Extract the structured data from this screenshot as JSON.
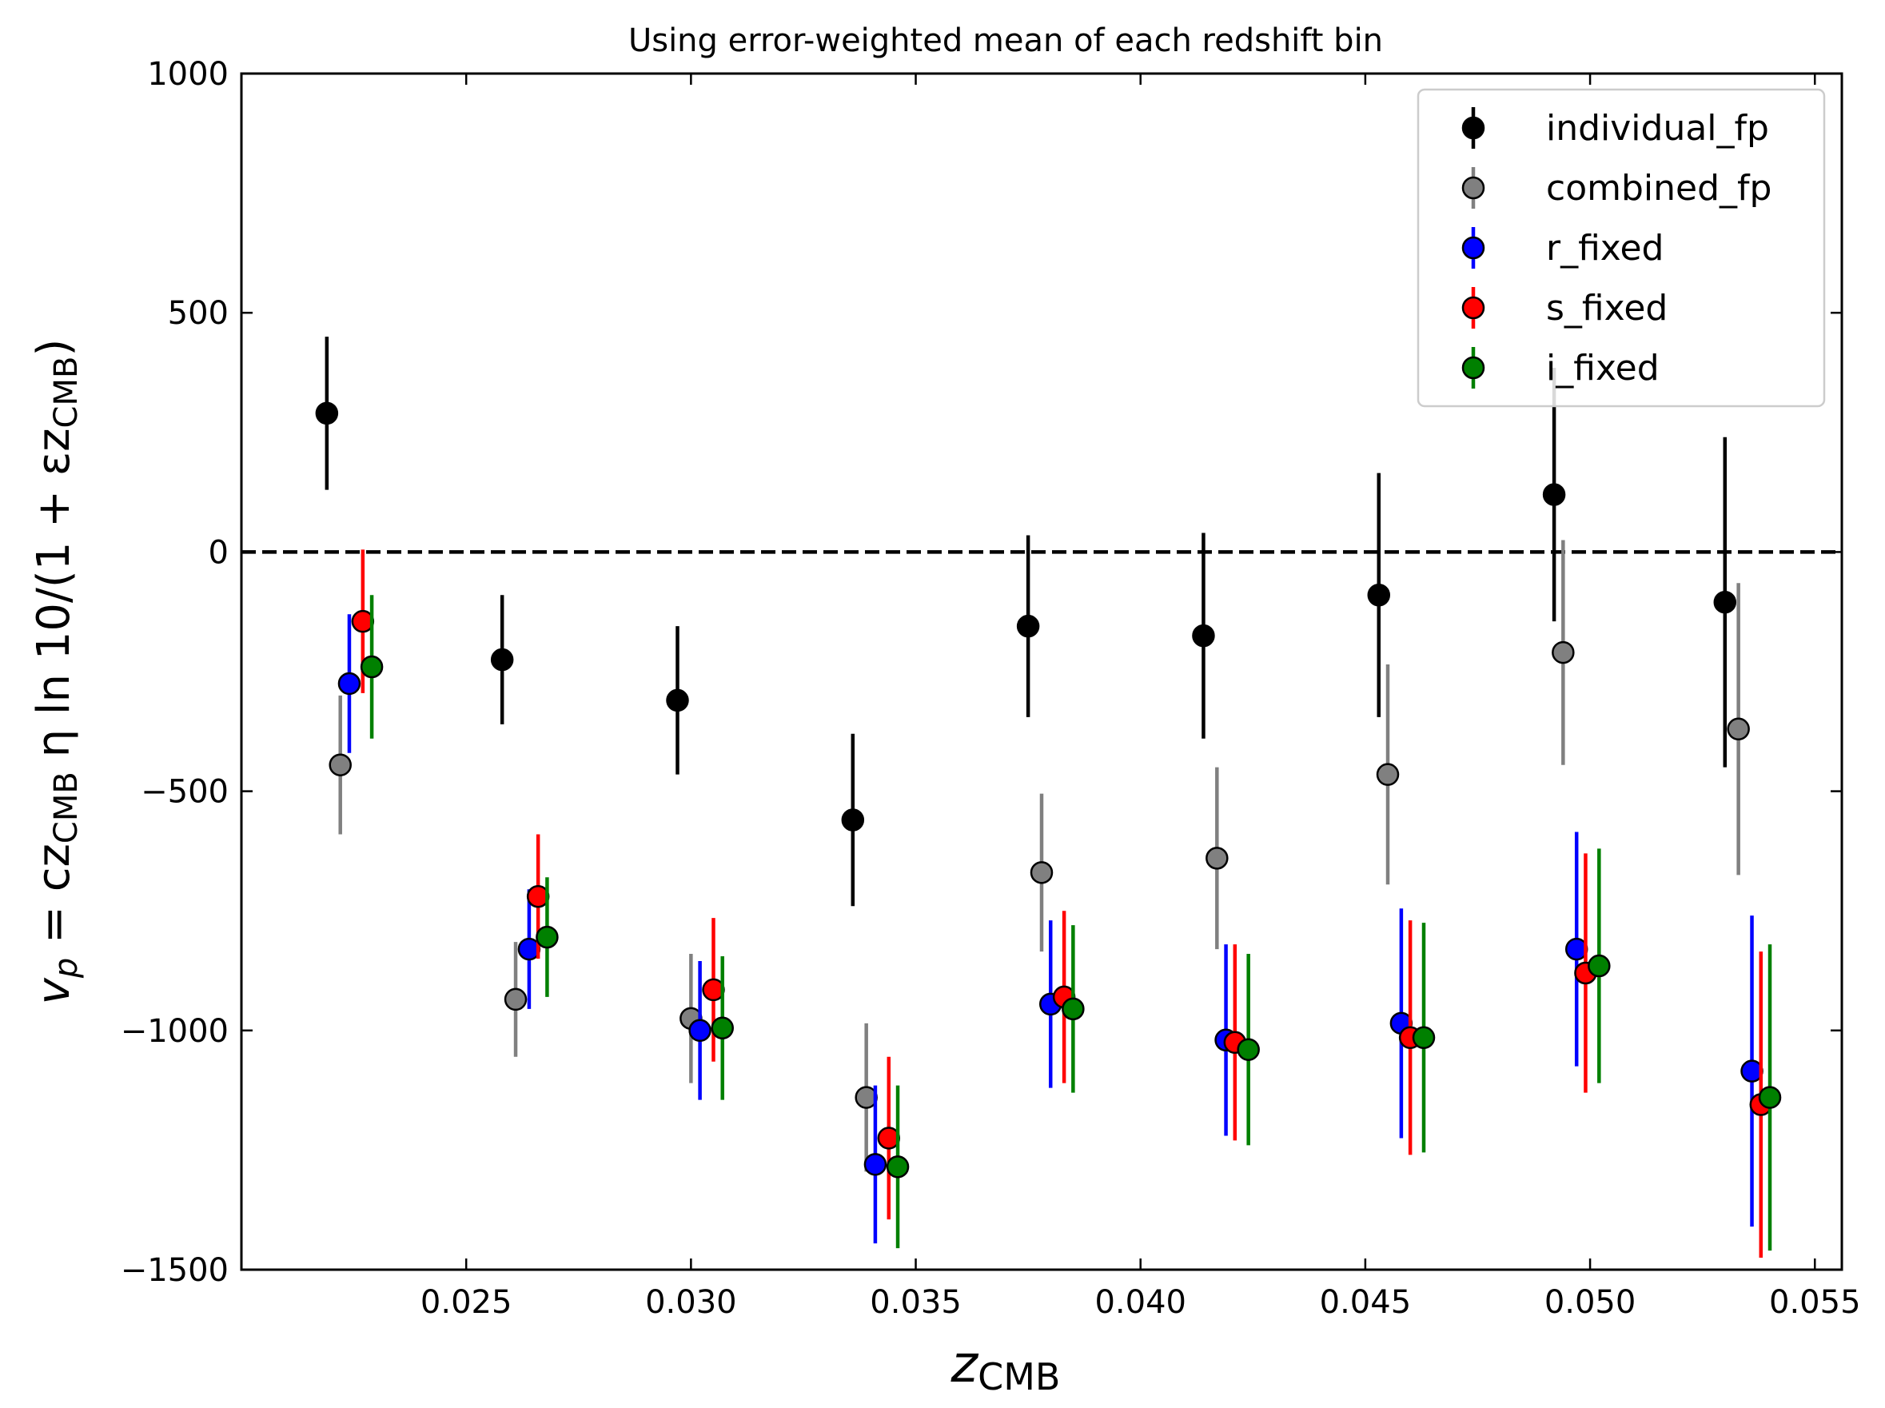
{
  "chart_data": {
    "type": "scatter",
    "title": "Using error-weighted mean of each redshift bin",
    "xlabel": {
      "main": "z",
      "sub": "CMB"
    },
    "ylabel": {
      "vp": "v",
      "vp_sub": "p",
      "eq": " = cz",
      "cmb1": "CMB",
      "mid": " η ln 10/(1 + εz",
      "cmb2": "CMB",
      "end": ")"
    },
    "xlim": [
      0.02,
      0.0556
    ],
    "ylim": [
      -1500,
      1000
    ],
    "xticks": [
      0.025,
      0.03,
      0.035,
      0.04,
      0.045,
      0.05,
      0.055
    ],
    "xtick_labels": [
      "0.025",
      "0.030",
      "0.035",
      "0.040",
      "0.045",
      "0.050",
      "0.055"
    ],
    "yticks": [
      -1500,
      -1000,
      -500,
      0,
      500,
      1000
    ],
    "ytick_labels": [
      "−1500",
      "−1000",
      "−500",
      "0",
      "500",
      "1000"
    ],
    "reference_line": {
      "y": 0,
      "style": "dashed",
      "color": "#000000"
    },
    "legend_position": "top-right",
    "series": [
      {
        "name": "individual_fp",
        "color": "#000000",
        "marker_color": "#000000",
        "x": [
          0.0219,
          0.0258,
          0.0297,
          0.0336,
          0.0375,
          0.0414,
          0.0453,
          0.0492,
          0.053
        ],
        "y": [
          290,
          -225,
          -310,
          -560,
          -155,
          -175,
          -90,
          120,
          -105
        ],
        "err_low": [
          160,
          135,
          155,
          180,
          190,
          215,
          255,
          265,
          345
        ],
        "err_high": [
          160,
          135,
          155,
          180,
          190,
          215,
          255,
          265,
          345
        ]
      },
      {
        "name": "combined_fp",
        "color": "#808080",
        "marker_color": "#808080",
        "x": [
          0.0222,
          0.0261,
          0.03,
          0.0339,
          0.0378,
          0.0417,
          0.0455,
          0.0494,
          0.0533
        ],
        "y": [
          -445,
          -935,
          -975,
          -1140,
          -670,
          -640,
          -465,
          -210,
          -370
        ],
        "err_low": [
          145,
          120,
          135,
          155,
          165,
          190,
          230,
          235,
          305
        ],
        "err_high": [
          145,
          120,
          135,
          155,
          165,
          190,
          230,
          235,
          305
        ]
      },
      {
        "name": "r_fixed",
        "color": "#0000ff",
        "marker_color": "#0000ff",
        "x": [
          0.0224,
          0.0264,
          0.0302,
          0.0341,
          0.038,
          0.0419,
          0.0458,
          0.0497,
          0.0536
        ],
        "y": [
          -275,
          -830,
          -1000,
          -1280,
          -945,
          -1020,
          -985,
          -830,
          -1085
        ],
        "err_low": [
          145,
          125,
          145,
          165,
          175,
          200,
          240,
          245,
          325
        ],
        "err_high": [
          145,
          125,
          145,
          165,
          175,
          200,
          240,
          245,
          325
        ]
      },
      {
        "name": "s_fixed",
        "color": "#ff0000",
        "marker_color": "#ff0000",
        "x": [
          0.0227,
          0.0266,
          0.0305,
          0.0344,
          0.0383,
          0.0421,
          0.046,
          0.0499,
          0.0538
        ],
        "y": [
          -145,
          -720,
          -915,
          -1225,
          -930,
          -1025,
          -1015,
          -880,
          -1155
        ],
        "err_low": [
          150,
          130,
          150,
          170,
          180,
          205,
          245,
          250,
          320
        ],
        "err_high": [
          150,
          130,
          150,
          170,
          180,
          205,
          245,
          250,
          320
        ]
      },
      {
        "name": "i_fixed",
        "color": "#008000",
        "marker_color": "#008000",
        "x": [
          0.0229,
          0.0268,
          0.0307,
          0.0346,
          0.0385,
          0.0424,
          0.0463,
          0.0502,
          0.054
        ],
        "y": [
          -240,
          -805,
          -995,
          -1285,
          -955,
          -1040,
          -1015,
          -865,
          -1140
        ],
        "err_low": [
          150,
          125,
          150,
          170,
          175,
          200,
          240,
          245,
          320
        ],
        "err_high": [
          150,
          125,
          150,
          170,
          175,
          200,
          240,
          245,
          320
        ]
      }
    ]
  }
}
